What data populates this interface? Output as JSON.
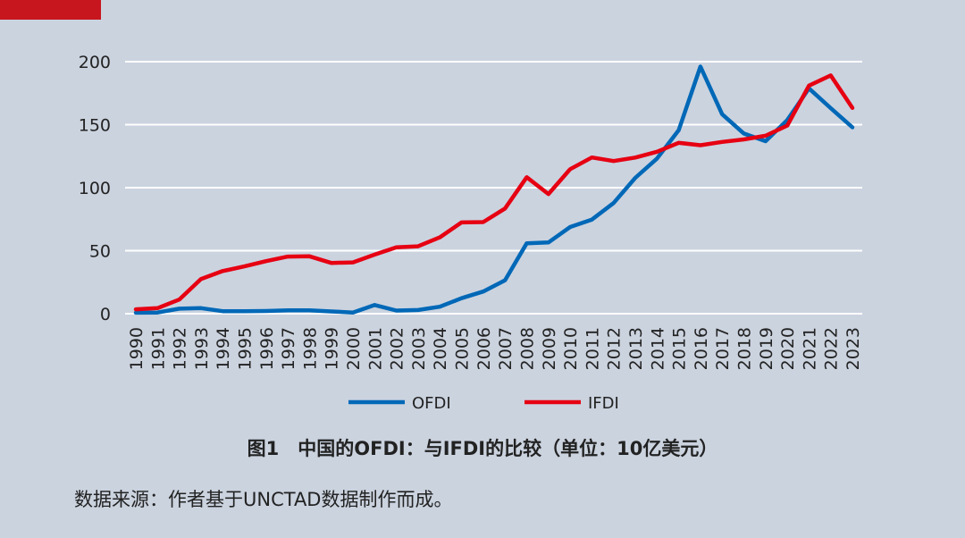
{
  "chart_data": {
    "type": "line",
    "title": "",
    "xlabel": "",
    "ylabel": "",
    "ylim": [
      0,
      200
    ],
    "yticks": [
      0,
      50,
      100,
      150,
      200
    ],
    "grid": true,
    "legend_position": "bottom",
    "x": [
      1990,
      1991,
      1992,
      1993,
      1994,
      1995,
      1996,
      1997,
      1998,
      1999,
      2000,
      2001,
      2002,
      2003,
      2004,
      2005,
      2006,
      2007,
      2008,
      2009,
      2010,
      2011,
      2012,
      2013,
      2014,
      2015,
      2016,
      2017,
      2018,
      2019,
      2020,
      2021,
      2022,
      2023
    ],
    "series": [
      {
        "name": "OFDI",
        "color": "#0068b7",
        "values": [
          0.8,
          0.9,
          4.0,
          4.4,
          2.0,
          2.0,
          2.1,
          2.6,
          2.6,
          1.8,
          0.9,
          6.9,
          2.5,
          2.9,
          5.5,
          12.3,
          17.6,
          26.5,
          55.9,
          56.5,
          68.8,
          74.7,
          87.8,
          107.8,
          123.1,
          145.7,
          196.1,
          158.3,
          143.0,
          136.9,
          153.7,
          178.8,
          163.1,
          147.9
        ]
      },
      {
        "name": "IFDI",
        "color": "#e60012",
        "values": [
          3.5,
          4.4,
          11.2,
          27.5,
          33.8,
          37.5,
          41.7,
          45.3,
          45.5,
          40.3,
          40.7,
          46.9,
          52.7,
          53.5,
          60.6,
          72.4,
          72.7,
          83.5,
          108.3,
          95.0,
          114.7,
          124.0,
          121.1,
          123.9,
          128.5,
          135.6,
          133.7,
          136.3,
          138.3,
          141.2,
          149.3,
          181.0,
          189.1,
          163.3
        ]
      }
    ]
  },
  "caption": "图1　中国的OFDI：与IFDI的比较（单位：10亿美元）",
  "source": "数据来源：作者基于UNCTAD数据制作而成。",
  "accent_color": "#c8161e"
}
